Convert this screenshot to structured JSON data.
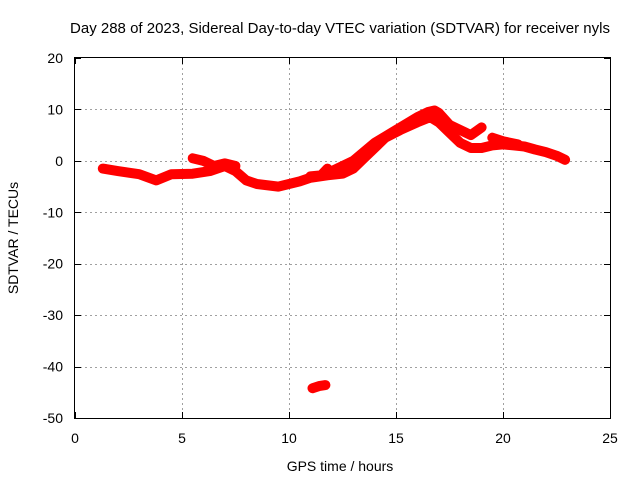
{
  "chart_data": {
    "type": "scatter",
    "title": "Day 288 of 2023, Sidereal Day-to-day VTEC variation (SDTVAR) for receiver nyls",
    "xlabel": "GPS time / hours",
    "ylabel": "SDTVAR / TECUs",
    "xlim": [
      0,
      25
    ],
    "ylim": [
      -50,
      20
    ],
    "x_ticks": [
      "0",
      "5",
      "10",
      "15",
      "20",
      "25"
    ],
    "y_ticks": [
      "20",
      "10",
      "0",
      "-10",
      "-20",
      "-30",
      "-40",
      "-50"
    ],
    "grid": true,
    "color": "#ff0000",
    "series": [
      {
        "name": "SDTVAR-main",
        "points": [
          [
            1.3,
            -1.5
          ],
          [
            2.0,
            -2.0
          ],
          [
            3.0,
            -2.6
          ],
          [
            3.8,
            -3.8
          ],
          [
            4.5,
            -2.6
          ],
          [
            5.5,
            -2.5
          ],
          [
            6.3,
            -2.0
          ],
          [
            7.0,
            -1.0
          ],
          [
            7.5,
            -2.0
          ],
          [
            8.0,
            -3.8
          ],
          [
            8.5,
            -4.5
          ],
          [
            9.5,
            -5.0
          ],
          [
            10.5,
            -4.0
          ],
          [
            11.0,
            -3.3
          ],
          [
            11.8,
            -2.8
          ],
          [
            12.5,
            -2.5
          ],
          [
            13.0,
            -1.5
          ],
          [
            13.5,
            0.5
          ],
          [
            14.0,
            2.5
          ],
          [
            14.5,
            4.5
          ],
          [
            15.2,
            6.0
          ],
          [
            16.0,
            7.5
          ],
          [
            16.6,
            8.5
          ],
          [
            17.0,
            7.5
          ],
          [
            17.5,
            5.5
          ],
          [
            18.0,
            3.5
          ],
          [
            18.5,
            2.5
          ],
          [
            19.0,
            2.5
          ],
          [
            19.5,
            3.0
          ],
          [
            20.0,
            3.2
          ],
          [
            20.5,
            3.0
          ],
          [
            21.0,
            2.8
          ],
          [
            21.5,
            2.2
          ],
          [
            22.0,
            1.7
          ],
          [
            22.5,
            1.0
          ],
          [
            22.9,
            0.2
          ]
        ]
      },
      {
        "name": "SDTVAR-upper-branch",
        "points": [
          [
            12.0,
            -2.0
          ],
          [
            13.0,
            0.0
          ],
          [
            14.0,
            3.5
          ],
          [
            15.0,
            6.0
          ],
          [
            16.0,
            8.5
          ],
          [
            16.5,
            9.5
          ],
          [
            16.8,
            9.8
          ],
          [
            17.0,
            9.3
          ],
          [
            17.5,
            7.0
          ],
          [
            18.0,
            6.0
          ],
          [
            18.5,
            5.0
          ],
          [
            19.0,
            6.5
          ]
        ]
      },
      {
        "name": "SDTVAR-secondary-1",
        "points": [
          [
            5.5,
            0.5
          ],
          [
            6.0,
            0.0
          ],
          [
            6.5,
            -1.0
          ],
          [
            7.0,
            -0.5
          ],
          [
            7.5,
            -1.0
          ]
        ]
      },
      {
        "name": "SDTVAR-secondary-2",
        "points": [
          [
            11.0,
            -3.0
          ],
          [
            11.5,
            -2.8
          ],
          [
            11.8,
            -1.5
          ]
        ]
      },
      {
        "name": "SDTVAR-outlier",
        "points": [
          [
            11.1,
            -44.2
          ],
          [
            11.4,
            -43.8
          ],
          [
            11.7,
            -43.6
          ]
        ]
      },
      {
        "name": "SDTVAR-late-branch",
        "points": [
          [
            19.5,
            4.5
          ],
          [
            20.0,
            3.8
          ],
          [
            20.7,
            3.2
          ]
        ]
      }
    ]
  }
}
